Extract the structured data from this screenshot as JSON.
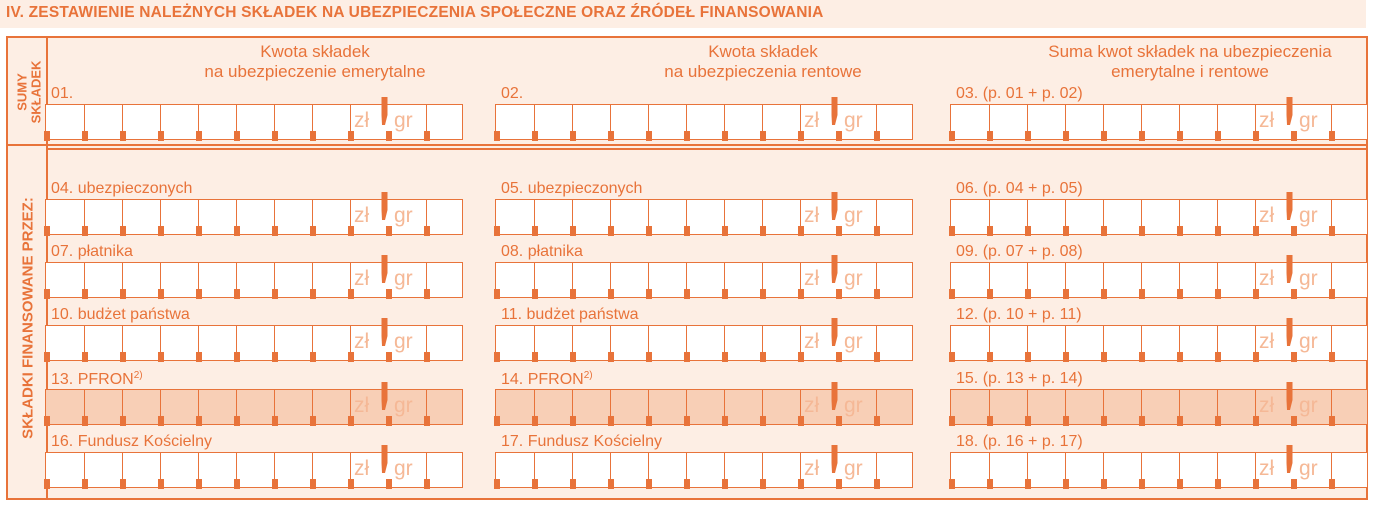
{
  "section": {
    "title": "IV. ZESTAWIENIE NALEŻNYCH SKŁADEK NA UBEZPIECZENIA SPOŁECZNE ORAZ ŹRÓDEŁ FINANSOWANIA"
  },
  "sums_band": {
    "label_line1": "SUMY",
    "label_line2": "SKŁADEK",
    "columns": [
      {
        "header_line1": "Kwota składek",
        "header_line2": "na ubezpieczenie emerytalne",
        "field_label": "01."
      },
      {
        "header_line1": "Kwota składek",
        "header_line2": "na ubezpieczenia rentowe",
        "field_label": "02."
      },
      {
        "header_line1": "Suma kwot składek na ubezpieczenia",
        "header_line2": "emerytalne i rentowe",
        "field_label": "03. (p. 01 + p. 02)"
      }
    ]
  },
  "financing_band": {
    "label": "SKŁADKI FINANSOWANE PRZEZ:",
    "rows": [
      {
        "c1": "04. ubezpieczonych",
        "c2": "05. ubezpieczonych",
        "c3": "06. (p. 04 + p. 05)",
        "footnote": ""
      },
      {
        "c1": "07. płatnika",
        "c2": "08. płatnika",
        "c3": "09. (p. 07 + p. 08)",
        "footnote": ""
      },
      {
        "c1": "10. budżet państwa",
        "c2": "11. budżet państwa",
        "c3": "12. (p. 10 + p. 11)",
        "footnote": ""
      },
      {
        "c1": "13. PFRON",
        "c2": "14. PFRON",
        "c3": "15. (p. 13 + p. 14)",
        "footnote": "2)"
      },
      {
        "c1": "16. Fundusz Kościelny",
        "c2": "17. Fundusz Kościelny",
        "c3": "18. (p. 16 + p. 17)",
        "footnote": ""
      }
    ]
  },
  "amount_field": {
    "zl_label": "zł",
    "gr_label": "gr"
  },
  "colors": {
    "accent": "#e8733a",
    "panel": "#fdeee4",
    "shaded_row": "#f8cfb6",
    "faint_text": "#f5b896"
  }
}
